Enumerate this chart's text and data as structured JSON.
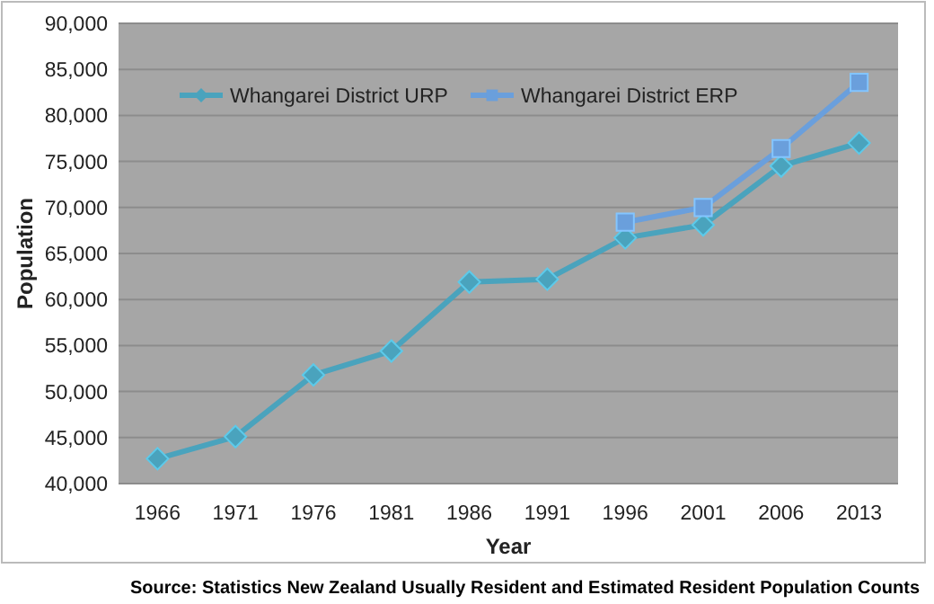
{
  "chart_data": {
    "type": "line",
    "xlabel": "Year",
    "ylabel": "Population",
    "categories": [
      "1966",
      "1971",
      "1976",
      "1981",
      "1986",
      "1991",
      "1996",
      "2001",
      "2006",
      "2013"
    ],
    "series": [
      {
        "name": "Whangarei District URP",
        "color": "#4aa3bd",
        "marker": "diamond",
        "values": [
          42700,
          45100,
          51800,
          54400,
          61900,
          62200,
          66700,
          68100,
          74500,
          77000
        ]
      },
      {
        "name": "Whangarei District ERP",
        "color": "#6a9fdc",
        "marker": "square",
        "values": [
          null,
          null,
          null,
          null,
          null,
          null,
          68400,
          70000,
          76400,
          83600
        ]
      }
    ],
    "ylim": [
      40000,
      90000
    ],
    "yticks": [
      {
        "value": 40000,
        "label": "40,000"
      },
      {
        "value": 45000,
        "label": "45,000"
      },
      {
        "value": 50000,
        "label": "50,000"
      },
      {
        "value": 55000,
        "label": "55,000"
      },
      {
        "value": 60000,
        "label": "60,000"
      },
      {
        "value": 65000,
        "label": "65,000"
      },
      {
        "value": 70000,
        "label": "70,000"
      },
      {
        "value": 75000,
        "label": "75,000"
      },
      {
        "value": 80000,
        "label": "80,000"
      },
      {
        "value": 85000,
        "label": "85,000"
      },
      {
        "value": 90000,
        "label": "90,000"
      }
    ],
    "grid": "y",
    "legend": "top left",
    "line_style": "solid",
    "annotations": [
      "Source: Statistics New Zealand Usually Resident and Estimated Resident Population Counts"
    ]
  }
}
